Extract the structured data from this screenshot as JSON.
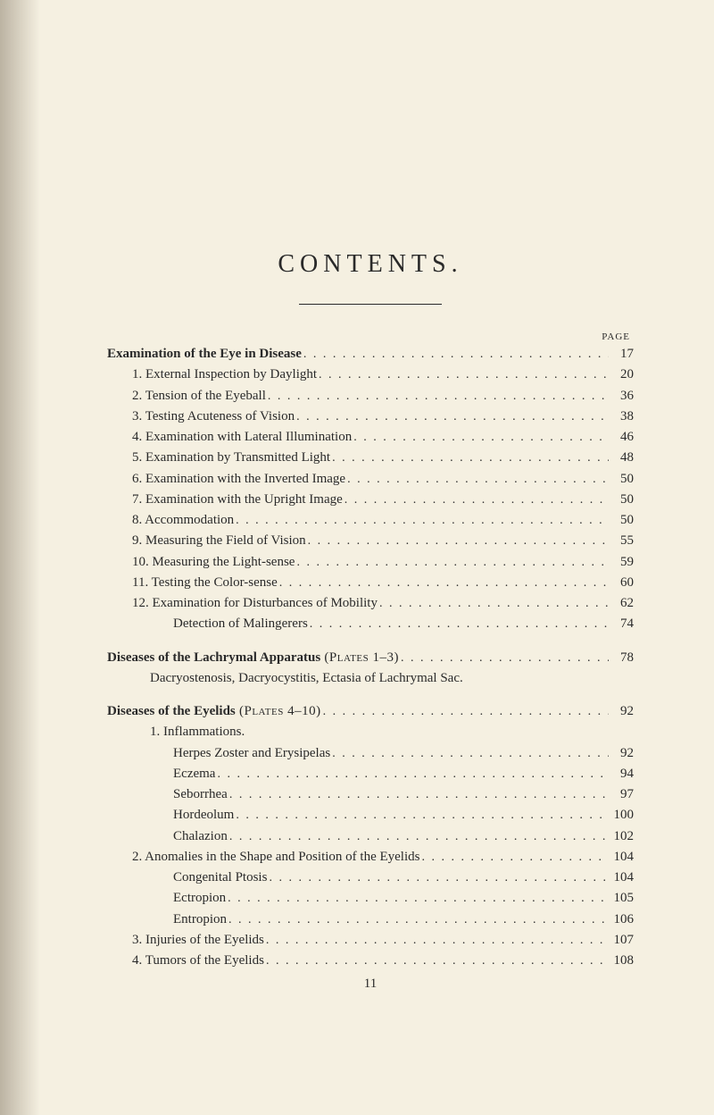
{
  "title": "CONTENTS.",
  "pageLabel": "PAGE",
  "footerPage": "11",
  "sections": [
    {
      "lines": [
        {
          "label": "Examination of the Eye in Disease",
          "page": "17",
          "indent": 0,
          "bold": true
        },
        {
          "label": "1. External Inspection by Daylight",
          "page": "20",
          "indent": 1
        },
        {
          "label": "2. Tension of the Eyeball",
          "page": "36",
          "indent": 1
        },
        {
          "label": "3. Testing Acuteness of Vision",
          "page": "38",
          "indent": 1
        },
        {
          "label": "4. Examination with Lateral Illumination",
          "page": "46",
          "indent": 1
        },
        {
          "label": "5. Examination by Transmitted Light",
          "page": "48",
          "indent": 1
        },
        {
          "label": "6. Examination with the Inverted Image",
          "page": "50",
          "indent": 1
        },
        {
          "label": "7. Examination with the Upright Image",
          "page": "50",
          "indent": 1
        },
        {
          "label": "8. Accommodation",
          "page": "50",
          "indent": 1
        },
        {
          "label": "9. Measuring the Field of Vision",
          "page": "55",
          "indent": 1
        },
        {
          "label": "10. Measuring the Light-sense",
          "page": "59",
          "indent": 1
        },
        {
          "label": "11. Testing the Color-sense",
          "page": "60",
          "indent": 1
        },
        {
          "label": "12. Examination for Disturbances of Mobility",
          "page": "62",
          "indent": 1
        },
        {
          "label": "Detection of Malingerers",
          "page": "74",
          "indent": 2
        }
      ]
    },
    {
      "lines": [
        {
          "label": "Diseases of the Lachrymal Apparatus (Plates 1–3)",
          "labelBold": "Diseases of the Lachrymal Apparatus",
          "labelRest": " (Plates 1–3)",
          "page": "78",
          "indent": 0,
          "boldPartial": true
        }
      ],
      "subtext": "Dacryostenosis, Dacryocystitis, Ectasia of Lachrymal Sac."
    },
    {
      "lines": [
        {
          "labelBold": "Diseases of the Eyelids",
          "labelRest": " (Plates 4–10)",
          "page": "92",
          "indent": 0,
          "boldPartial": true
        }
      ],
      "sublines": [
        {
          "type": "heading",
          "label": "1. Inflammations."
        },
        {
          "type": "toc",
          "label": "Herpes Zoster and Erysipelas",
          "page": "92",
          "indent": 2
        },
        {
          "type": "toc",
          "label": "Eczema",
          "page": "94",
          "indent": 2
        },
        {
          "type": "toc",
          "label": "Seborrhea",
          "page": "97",
          "indent": 2
        },
        {
          "type": "toc",
          "label": "Hordeolum",
          "page": "100",
          "indent": 2
        },
        {
          "type": "toc",
          "label": "Chalazion",
          "page": "102",
          "indent": 2
        },
        {
          "type": "toc",
          "label": "2. Anomalies in the Shape and Position of the Eyelids",
          "page": "104",
          "indent": 1
        },
        {
          "type": "toc",
          "label": "Congenital Ptosis",
          "page": "104",
          "indent": 2
        },
        {
          "type": "toc",
          "label": "Ectropion",
          "page": "105",
          "indent": 2
        },
        {
          "type": "toc",
          "label": "Entropion",
          "page": "106",
          "indent": 2
        },
        {
          "type": "toc",
          "label": "3. Injuries of the Eyelids",
          "page": "107",
          "indent": 1
        },
        {
          "type": "toc",
          "label": "4. Tumors of the Eyelids",
          "page": "108",
          "indent": 1
        }
      ]
    }
  ]
}
